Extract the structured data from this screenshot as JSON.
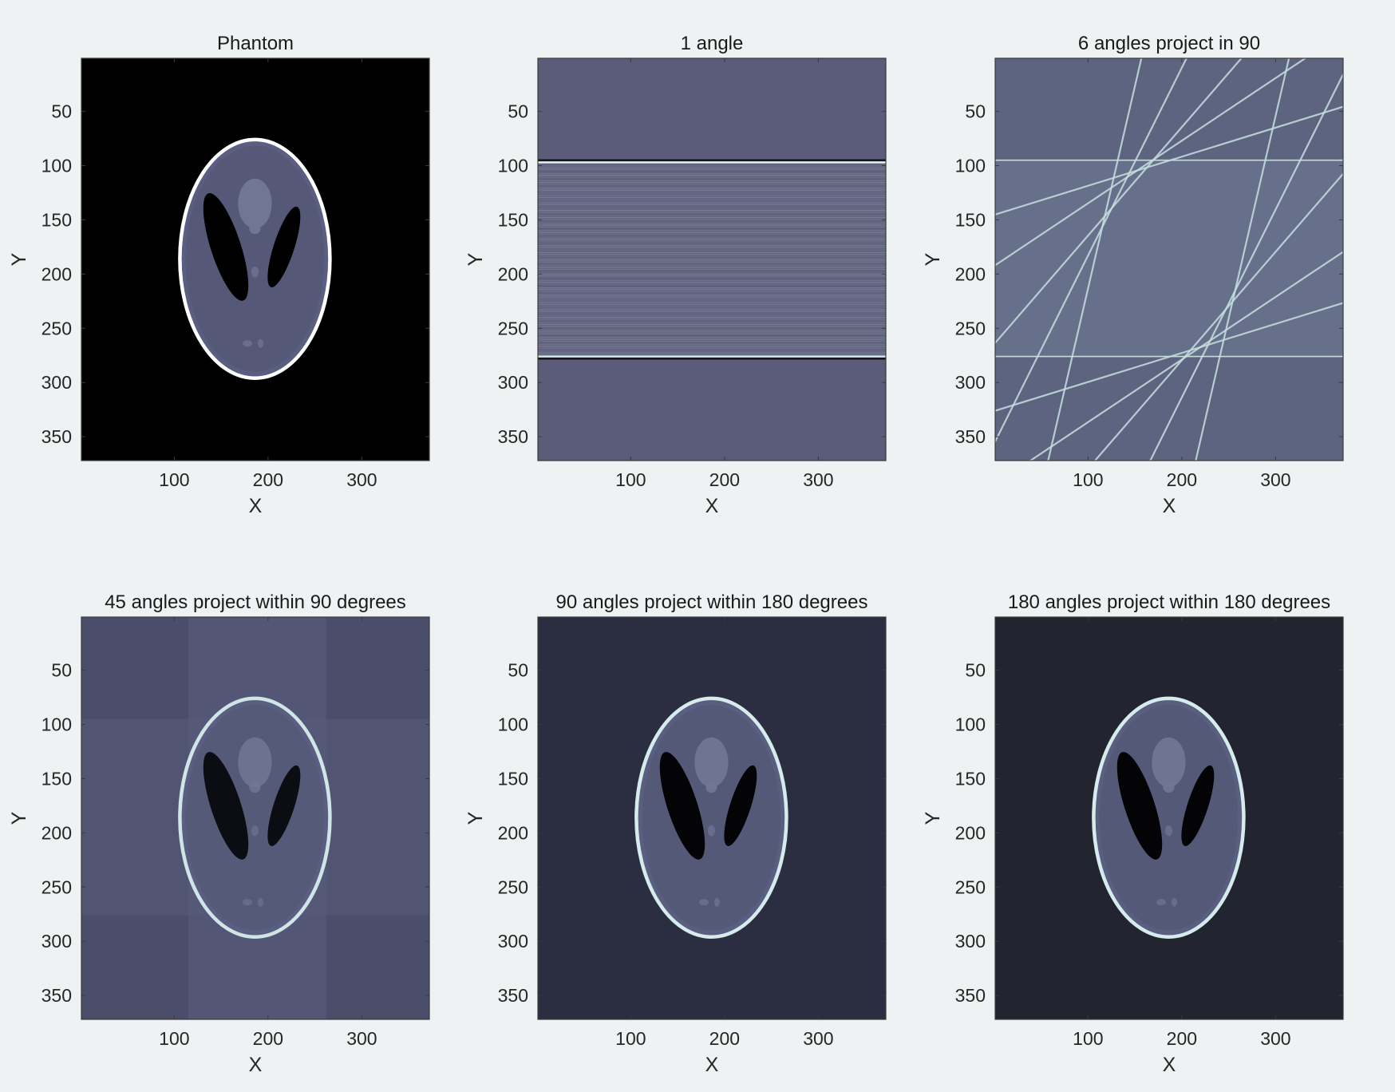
{
  "chart_data": [
    {
      "type": "heatmap",
      "id": "phantom",
      "title": "Phantom",
      "xlabel": "X",
      "ylabel": "Y",
      "xlim": [
        1,
        372
      ],
      "ylim": [
        1,
        372
      ],
      "xticks": [
        100,
        200,
        300
      ],
      "yticks": [
        50,
        100,
        150,
        200,
        250,
        300,
        350
      ],
      "colormap": "bone",
      "background": "#000000",
      "content": "shepp-logan-phantom",
      "outer_ellipse": {
        "center": [
          186,
          186
        ],
        "radii": [
          69,
          92
        ]
      }
    },
    {
      "type": "heatmap",
      "id": "one-angle",
      "title": "1 angle",
      "xlabel": "X",
      "ylabel": "Y",
      "xlim": [
        1,
        372
      ],
      "ylim": [
        1,
        372
      ],
      "xticks": [
        100,
        200,
        300
      ],
      "yticks": [
        50,
        100,
        150,
        200,
        250,
        300,
        350
      ],
      "colormap": "bone",
      "background": "#5a5c7a",
      "content": "horizontal-backprojection-stripes",
      "stripe_band": [
        95,
        276
      ]
    },
    {
      "type": "heatmap",
      "id": "six-angles",
      "title": "6 angles project in 90",
      "xlabel": "X",
      "ylabel": "Y",
      "xlim": [
        1,
        372
      ],
      "ylim": [
        1,
        372
      ],
      "xticks": [
        100,
        200,
        300
      ],
      "yticks": [
        50,
        100,
        150,
        200,
        250,
        300,
        350
      ],
      "colormap": "bone",
      "background": "#5d6480",
      "content": "six-angle-backprojection-streaks"
    },
    {
      "type": "heatmap",
      "id": "forty-five-angles",
      "title": "45 angles project within 90 degrees",
      "xlabel": "X",
      "ylabel": "Y",
      "xlim": [
        1,
        372
      ],
      "ylim": [
        1,
        372
      ],
      "xticks": [
        100,
        200,
        300
      ],
      "yticks": [
        50,
        100,
        150,
        200,
        250,
        300,
        350
      ],
      "colormap": "bone",
      "background": "#4b4e6b",
      "content": "limited-angle-reconstruction"
    },
    {
      "type": "heatmap",
      "id": "ninety-angles",
      "title": "90 angles project within 180 degrees",
      "xlabel": "X",
      "ylabel": "Y",
      "xlim": [
        1,
        372
      ],
      "ylim": [
        1,
        372
      ],
      "xticks": [
        100,
        200,
        300
      ],
      "yticks": [
        50,
        100,
        150,
        200,
        250,
        300,
        350
      ],
      "colormap": "bone",
      "background": "#2b2d40",
      "content": "filtered-backprojection-reconstruction"
    },
    {
      "type": "heatmap",
      "id": "one-eighty-angles",
      "title": "180 angles project within 180 degrees",
      "xlabel": "X",
      "ylabel": "Y",
      "xlim": [
        1,
        372
      ],
      "ylim": [
        1,
        372
      ],
      "xticks": [
        100,
        200,
        300
      ],
      "yticks": [
        50,
        100,
        150,
        200,
        250,
        300,
        350
      ],
      "colormap": "bone",
      "background": "#22242f",
      "content": "filtered-backprojection-reconstruction"
    }
  ]
}
